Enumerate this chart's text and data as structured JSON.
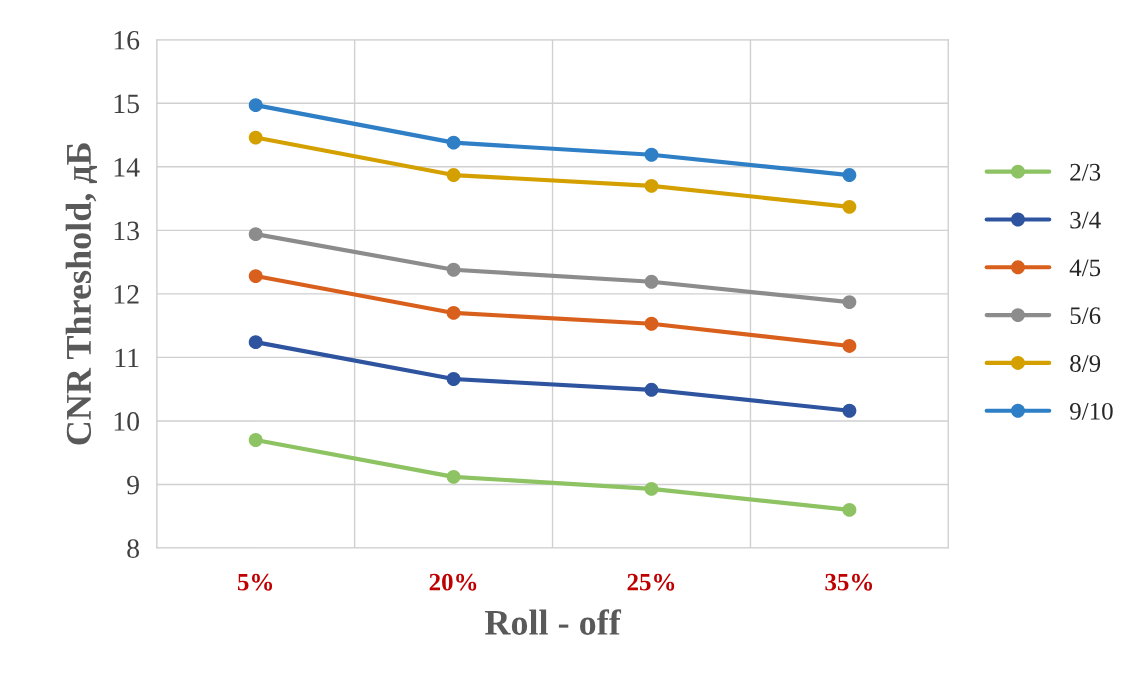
{
  "chart_data": {
    "type": "line",
    "xlabel": "Roll - off",
    "ylabel": "CNR Threshold, дБ",
    "categories": [
      "5%",
      "20%",
      "25%",
      "35%"
    ],
    "series": [
      {
        "name": "2/3",
        "color": "#8dc363",
        "values": [
          9.7,
          9.12,
          8.93,
          8.6
        ]
      },
      {
        "name": "3/4",
        "color": "#2e54a0",
        "values": [
          11.24,
          10.66,
          10.49,
          10.16
        ]
      },
      {
        "name": "4/5",
        "color": "#d9601c",
        "values": [
          12.28,
          11.7,
          11.53,
          11.18
        ]
      },
      {
        "name": "5/6",
        "color": "#8c8c8c",
        "values": [
          12.94,
          12.38,
          12.19,
          11.87
        ]
      },
      {
        "name": "8/9",
        "color": "#d4a000",
        "values": [
          14.46,
          13.87,
          13.7,
          13.37
        ]
      },
      {
        "name": "9/10",
        "color": "#2e7fc6",
        "values": [
          14.97,
          14.38,
          14.19,
          13.87
        ]
      }
    ],
    "ylim": [
      8,
      16
    ],
    "yticks": [
      8,
      9,
      10,
      11,
      12,
      13,
      14,
      15,
      16
    ],
    "grid": true,
    "legend": "right",
    "marker": "circle",
    "line_style": "solid"
  }
}
